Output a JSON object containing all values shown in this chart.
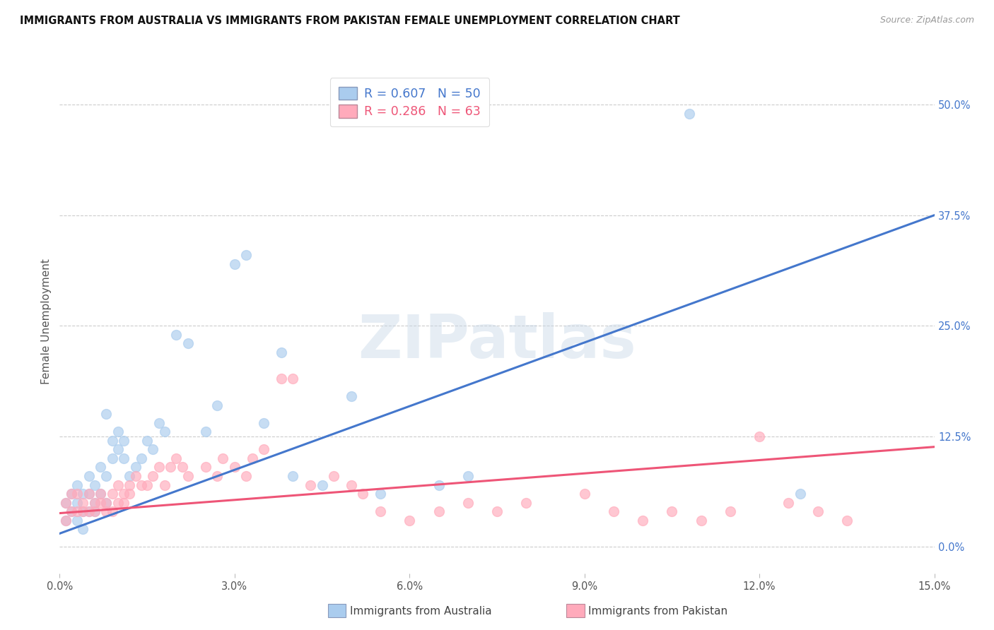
{
  "title": "IMMIGRANTS FROM AUSTRALIA VS IMMIGRANTS FROM PAKISTAN FEMALE UNEMPLOYMENT CORRELATION CHART",
  "source": "Source: ZipAtlas.com",
  "ylabel": "Female Unemployment",
  "xlim": [
    0.0,
    0.15
  ],
  "ylim": [
    -0.03,
    0.54
  ],
  "xticks": [
    0.0,
    0.03,
    0.06,
    0.09,
    0.12,
    0.15
  ],
  "yticks": [
    0.0,
    0.125,
    0.25,
    0.375,
    0.5
  ],
  "xticklabels": [
    "0.0%",
    "3.0%",
    "6.0%",
    "9.0%",
    "12.0%",
    "15.0%"
  ],
  "yticklabels": [
    "0.0%",
    "12.5%",
    "25.0%",
    "37.5%",
    "50.0%"
  ],
  "legend_line1": "R = 0.607   N = 50",
  "legend_line2": "R = 0.286   N = 63",
  "legend_label_australia": "Immigrants from Australia",
  "legend_label_pakistan": "Immigrants from Pakistan",
  "blue_dot_color": "#AACCEE",
  "pink_dot_color": "#FFAABB",
  "blue_line_color": "#4477CC",
  "pink_line_color": "#EE5577",
  "watermark_text": "ZIPatlas",
  "australia_x": [
    0.001,
    0.001,
    0.002,
    0.002,
    0.003,
    0.003,
    0.003,
    0.004,
    0.004,
    0.004,
    0.005,
    0.005,
    0.005,
    0.006,
    0.006,
    0.006,
    0.007,
    0.007,
    0.008,
    0.008,
    0.008,
    0.009,
    0.009,
    0.01,
    0.01,
    0.011,
    0.011,
    0.012,
    0.013,
    0.014,
    0.015,
    0.016,
    0.017,
    0.018,
    0.02,
    0.022,
    0.025,
    0.027,
    0.03,
    0.032,
    0.035,
    0.038,
    0.04,
    0.045,
    0.05,
    0.055,
    0.065,
    0.07,
    0.108,
    0.127
  ],
  "australia_y": [
    0.05,
    0.03,
    0.04,
    0.06,
    0.03,
    0.05,
    0.07,
    0.04,
    0.06,
    0.02,
    0.04,
    0.06,
    0.08,
    0.05,
    0.07,
    0.04,
    0.06,
    0.09,
    0.05,
    0.08,
    0.15,
    0.1,
    0.12,
    0.11,
    0.13,
    0.1,
    0.12,
    0.08,
    0.09,
    0.1,
    0.12,
    0.11,
    0.14,
    0.13,
    0.24,
    0.23,
    0.13,
    0.16,
    0.32,
    0.33,
    0.14,
    0.22,
    0.08,
    0.07,
    0.17,
    0.06,
    0.07,
    0.08,
    0.49,
    0.06
  ],
  "pakistan_x": [
    0.001,
    0.001,
    0.002,
    0.002,
    0.003,
    0.003,
    0.004,
    0.004,
    0.005,
    0.005,
    0.006,
    0.006,
    0.007,
    0.007,
    0.008,
    0.008,
    0.009,
    0.009,
    0.01,
    0.01,
    0.011,
    0.011,
    0.012,
    0.012,
    0.013,
    0.014,
    0.015,
    0.016,
    0.017,
    0.018,
    0.019,
    0.02,
    0.021,
    0.022,
    0.025,
    0.027,
    0.028,
    0.03,
    0.032,
    0.033,
    0.035,
    0.038,
    0.04,
    0.043,
    0.047,
    0.05,
    0.052,
    0.055,
    0.06,
    0.065,
    0.07,
    0.075,
    0.08,
    0.09,
    0.095,
    0.1,
    0.105,
    0.11,
    0.115,
    0.12,
    0.125,
    0.13,
    0.135
  ],
  "pakistan_y": [
    0.05,
    0.03,
    0.04,
    0.06,
    0.04,
    0.06,
    0.04,
    0.05,
    0.04,
    0.06,
    0.04,
    0.05,
    0.05,
    0.06,
    0.04,
    0.05,
    0.04,
    0.06,
    0.05,
    0.07,
    0.05,
    0.06,
    0.07,
    0.06,
    0.08,
    0.07,
    0.07,
    0.08,
    0.09,
    0.07,
    0.09,
    0.1,
    0.09,
    0.08,
    0.09,
    0.08,
    0.1,
    0.09,
    0.08,
    0.1,
    0.11,
    0.19,
    0.19,
    0.07,
    0.08,
    0.07,
    0.06,
    0.04,
    0.03,
    0.04,
    0.05,
    0.04,
    0.05,
    0.06,
    0.04,
    0.03,
    0.04,
    0.03,
    0.04,
    0.125,
    0.05,
    0.04,
    0.03
  ],
  "blue_trend_x": [
    0.0,
    0.15
  ],
  "blue_trend_y": [
    0.015,
    0.375
  ],
  "pink_trend_x": [
    0.0,
    0.15
  ],
  "pink_trend_y": [
    0.038,
    0.113
  ]
}
